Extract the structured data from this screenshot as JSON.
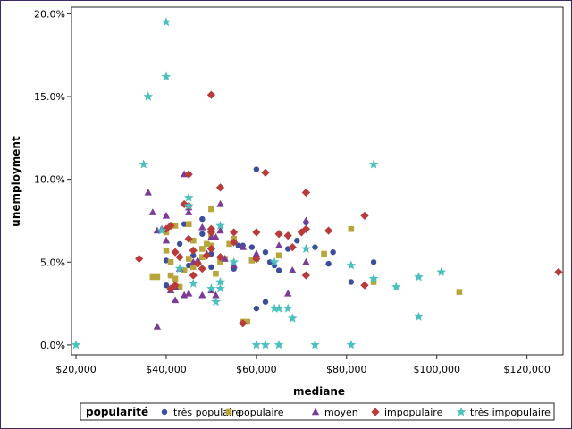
{
  "chart_data": {
    "type": "scatter",
    "xlabel": "mediane",
    "ylabel": "unemployment",
    "xlim": [
      19000,
      128000
    ],
    "ylim": [
      -0.006,
      0.204
    ],
    "xticks": [
      20000,
      40000,
      60000,
      80000,
      100000,
      120000
    ],
    "xtick_labels": [
      "$20,000",
      "$40,000",
      "$60,000",
      "$80,000",
      "$100,000",
      "$120,000"
    ],
    "yticks": [
      0.0,
      0.05,
      0.1,
      0.15,
      0.2
    ],
    "ytick_labels": [
      "0.0%",
      "5.0%",
      "10.0%",
      "15.0%",
      "20.0%"
    ],
    "grid": false,
    "legend": {
      "title": "popularité",
      "position": "bottom"
    },
    "series": [
      {
        "name": "très populaire",
        "color": "#3b4d9b",
        "marker": "circle",
        "points": [
          [
            40000,
            0.036
          ],
          [
            40000,
            0.051
          ],
          [
            43000,
            0.061
          ],
          [
            44000,
            0.073
          ],
          [
            45000,
            0.048
          ],
          [
            46000,
            0.054
          ],
          [
            48000,
            0.067
          ],
          [
            48000,
            0.076
          ],
          [
            50000,
            0.055
          ],
          [
            50000,
            0.047
          ],
          [
            52000,
            0.05
          ],
          [
            55000,
            0.046
          ],
          [
            56000,
            0.06
          ],
          [
            57000,
            0.06
          ],
          [
            59000,
            0.059
          ],
          [
            60000,
            0.022
          ],
          [
            60000,
            0.053
          ],
          [
            60000,
            0.106
          ],
          [
            62000,
            0.056
          ],
          [
            62000,
            0.026
          ],
          [
            63000,
            0.05
          ],
          [
            64000,
            0.048
          ],
          [
            65000,
            0.045
          ],
          [
            67000,
            0.058
          ],
          [
            69000,
            0.063
          ],
          [
            71000,
            0.074
          ],
          [
            73000,
            0.059
          ],
          [
            76000,
            0.049
          ],
          [
            77000,
            0.056
          ],
          [
            81000,
            0.038
          ],
          [
            86000,
            0.05
          ]
        ]
      },
      {
        "name": "populaire",
        "color": "#b8a53c",
        "marker": "square",
        "points": [
          [
            37000,
            0.041
          ],
          [
            38000,
            0.041
          ],
          [
            40000,
            0.057
          ],
          [
            40000,
            0.068
          ],
          [
            41000,
            0.05
          ],
          [
            41000,
            0.042
          ],
          [
            42000,
            0.04
          ],
          [
            42000,
            0.072
          ],
          [
            43000,
            0.035
          ],
          [
            44000,
            0.045
          ],
          [
            45000,
            0.052
          ],
          [
            45000,
            0.073
          ],
          [
            46000,
            0.047
          ],
          [
            46000,
            0.063
          ],
          [
            48000,
            0.058
          ],
          [
            48000,
            0.053
          ],
          [
            49000,
            0.061
          ],
          [
            50000,
            0.066
          ],
          [
            50000,
            0.06
          ],
          [
            50000,
            0.082
          ],
          [
            51000,
            0.043
          ],
          [
            52000,
            0.05
          ],
          [
            52000,
            0.052
          ],
          [
            53000,
            0.052
          ],
          [
            54000,
            0.061
          ],
          [
            55000,
            0.064
          ],
          [
            57000,
            0.014
          ],
          [
            58000,
            0.014
          ],
          [
            59000,
            0.051
          ],
          [
            60000,
            0.052
          ],
          [
            65000,
            0.054
          ],
          [
            75000,
            0.055
          ],
          [
            81000,
            0.07
          ],
          [
            86000,
            0.038
          ],
          [
            105000,
            0.032
          ]
        ]
      },
      {
        "name": "moyen",
        "color": "#7a3c96",
        "marker": "triangle",
        "points": [
          [
            36000,
            0.092
          ],
          [
            37000,
            0.08
          ],
          [
            38000,
            0.011
          ],
          [
            38000,
            0.069
          ],
          [
            39000,
            0.07
          ],
          [
            40000,
            0.078
          ],
          [
            40000,
            0.063
          ],
          [
            41000,
            0.033
          ],
          [
            42000,
            0.027
          ],
          [
            42000,
            0.035
          ],
          [
            43000,
            0.046
          ],
          [
            44000,
            0.03
          ],
          [
            44000,
            0.103
          ],
          [
            45000,
            0.08
          ],
          [
            45000,
            0.083
          ],
          [
            45000,
            0.031
          ],
          [
            46000,
            0.05
          ],
          [
            47000,
            0.051
          ],
          [
            48000,
            0.03
          ],
          [
            48000,
            0.071
          ],
          [
            49000,
            0.055
          ],
          [
            50000,
            0.065
          ],
          [
            50000,
            0.033
          ],
          [
            51000,
            0.065
          ],
          [
            51000,
            0.03
          ],
          [
            52000,
            0.085
          ],
          [
            52000,
            0.069
          ],
          [
            53000,
            0.052
          ],
          [
            55000,
            0.048
          ],
          [
            57000,
            0.059
          ],
          [
            60000,
            0.055
          ],
          [
            65000,
            0.06
          ],
          [
            67000,
            0.031
          ],
          [
            68000,
            0.045
          ],
          [
            71000,
            0.075
          ],
          [
            71000,
            0.05
          ]
        ]
      },
      {
        "name": "impopulaire",
        "color": "#b83a3a",
        "marker": "diamond",
        "points": [
          [
            34000,
            0.052
          ],
          [
            40000,
            0.07
          ],
          [
            41000,
            0.072
          ],
          [
            41000,
            0.034
          ],
          [
            42000,
            0.056
          ],
          [
            42000,
            0.036
          ],
          [
            43000,
            0.053
          ],
          [
            44000,
            0.085
          ],
          [
            45000,
            0.064
          ],
          [
            45000,
            0.084
          ],
          [
            45000,
            0.103
          ],
          [
            46000,
            0.042
          ],
          [
            46000,
            0.057
          ],
          [
            47000,
            0.049
          ],
          [
            48000,
            0.046
          ],
          [
            49000,
            0.054
          ],
          [
            50000,
            0.068
          ],
          [
            50000,
            0.151
          ],
          [
            50000,
            0.058
          ],
          [
            50000,
            0.07
          ],
          [
            52000,
            0.095
          ],
          [
            52000,
            0.053
          ],
          [
            55000,
            0.068
          ],
          [
            55000,
            0.062
          ],
          [
            57000,
            0.013
          ],
          [
            60000,
            0.052
          ],
          [
            60000,
            0.068
          ],
          [
            62000,
            0.104
          ],
          [
            65000,
            0.067
          ],
          [
            67000,
            0.066
          ],
          [
            68000,
            0.059
          ],
          [
            70000,
            0.068
          ],
          [
            71000,
            0.092
          ],
          [
            71000,
            0.042
          ],
          [
            71000,
            0.07
          ],
          [
            76000,
            0.069
          ],
          [
            84000,
            0.078
          ],
          [
            84000,
            0.036
          ],
          [
            127000,
            0.044
          ]
        ]
      },
      {
        "name": "très impopulaire",
        "color": "#4cbfbf",
        "marker": "star",
        "points": [
          [
            20000,
            0.0
          ],
          [
            35000,
            0.109
          ],
          [
            36000,
            0.15
          ],
          [
            39000,
            0.069
          ],
          [
            40000,
            0.195
          ],
          [
            40000,
            0.162
          ],
          [
            43000,
            0.046
          ],
          [
            45000,
            0.089
          ],
          [
            45000,
            0.084
          ],
          [
            46000,
            0.037
          ],
          [
            50000,
            0.034
          ],
          [
            51000,
            0.026
          ],
          [
            52000,
            0.072
          ],
          [
            52000,
            0.038
          ],
          [
            52000,
            0.034
          ],
          [
            55000,
            0.05
          ],
          [
            60000,
            0.0
          ],
          [
            62000,
            0.0
          ],
          [
            64000,
            0.05
          ],
          [
            64000,
            0.022
          ],
          [
            65000,
            0.022
          ],
          [
            65000,
            0.0
          ],
          [
            67000,
            0.022
          ],
          [
            68000,
            0.016
          ],
          [
            71000,
            0.058
          ],
          [
            73000,
            0.0
          ],
          [
            81000,
            0.0
          ],
          [
            81000,
            0.048
          ],
          [
            86000,
            0.04
          ],
          [
            86000,
            0.109
          ],
          [
            91000,
            0.035
          ],
          [
            96000,
            0.041
          ],
          [
            96000,
            0.017
          ],
          [
            101000,
            0.044
          ]
        ]
      }
    ]
  }
}
